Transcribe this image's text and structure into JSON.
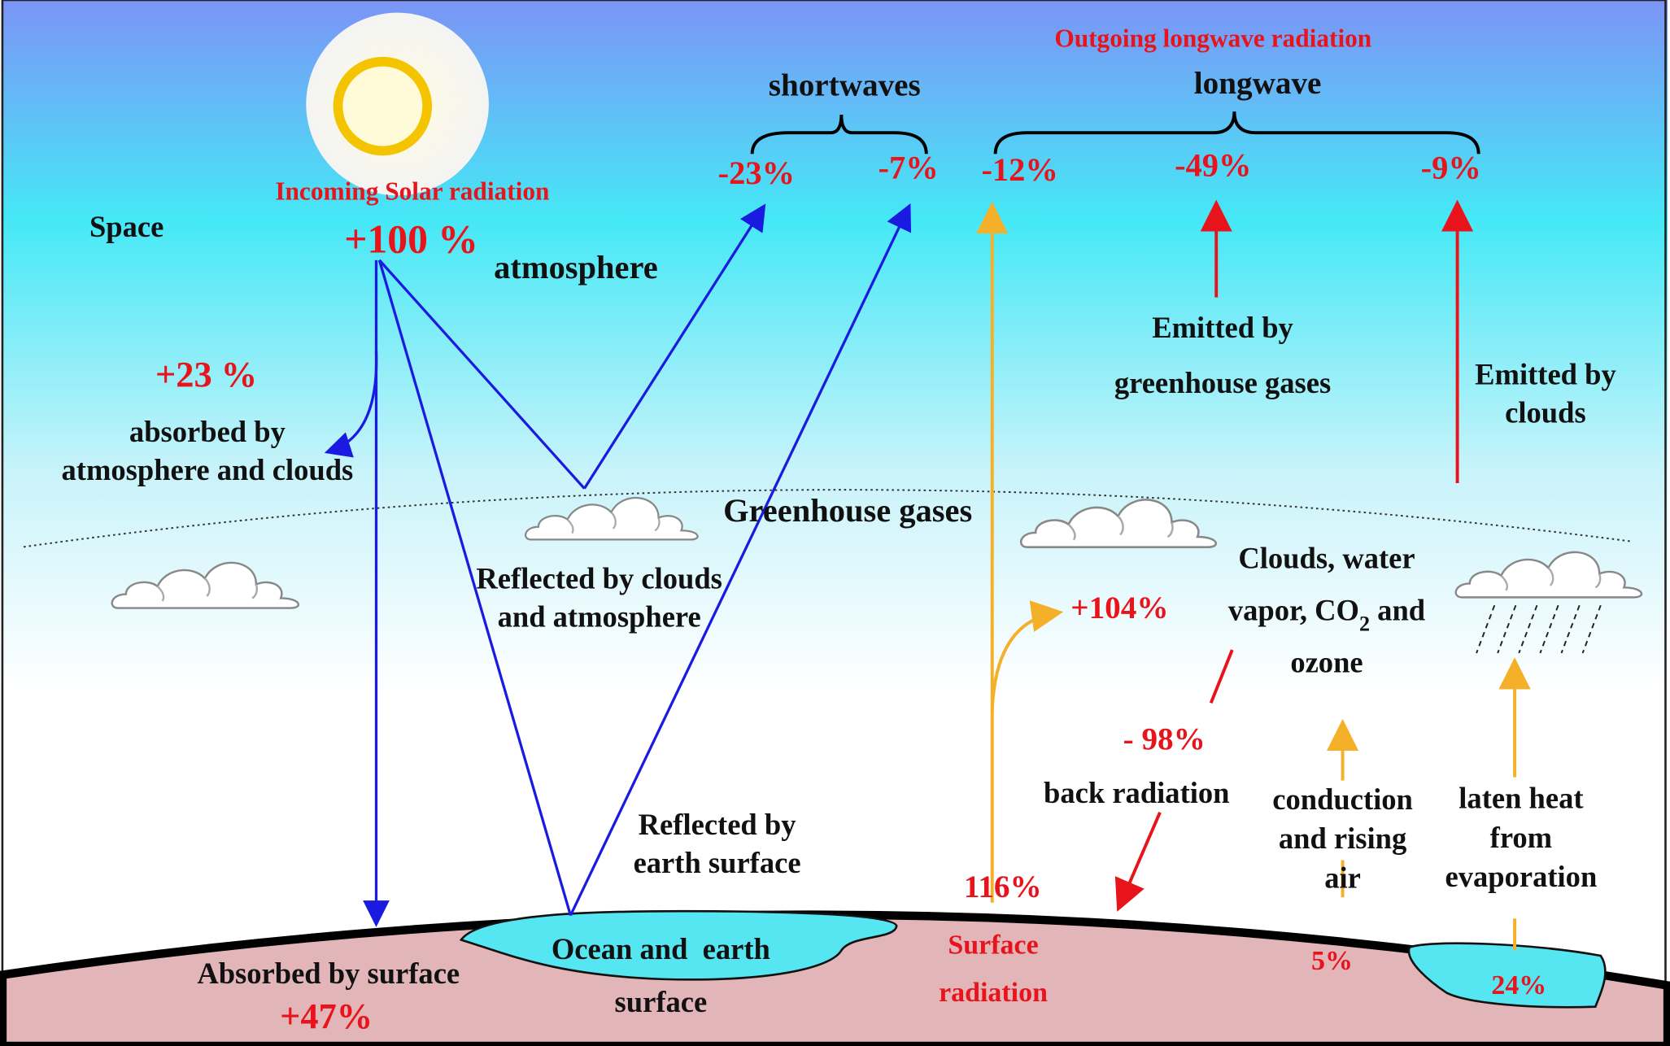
{
  "space": "Space",
  "atmosphere": "atmosphere",
  "greenhouse_gases": "Greenhouse gases",
  "incoming": {
    "label": "Incoming Solar radiation",
    "value": "+100 %"
  },
  "outgoing_title": "Outgoing longwave radiation",
  "shortwaves": {
    "label": "shortwaves",
    "values": [
      "-23%",
      "-7%"
    ]
  },
  "longwave": {
    "label": "longwave",
    "values": [
      "-12%",
      "-49%",
      "-9%"
    ]
  },
  "absorbed_atmosphere": {
    "value": "+23 %",
    "lines": [
      "absorbed by",
      "atmosphere and clouds"
    ]
  },
  "reflected_clouds": [
    "Reflected by clouds",
    "and atmosphere"
  ],
  "reflected_surface": [
    "Reflected by",
    "earth surface"
  ],
  "emitted_ghg": [
    "Emitted by",
    "greenhouse gases"
  ],
  "emitted_clouds": [
    "Emitted by",
    "clouds"
  ],
  "clouds_gases": {
    "line1": "Clouds, water",
    "line2_start": "vapor, CO",
    "line2_sub": "2",
    "line2_end": " and",
    "line3": "ozone"
  },
  "greenhouse_value": "+104%",
  "back_radiation": {
    "value": "- 98%",
    "label": "back radiation"
  },
  "conduction": {
    "lines": [
      "conduction",
      "and rising",
      "air"
    ],
    "value": "5%"
  },
  "latent": {
    "lines": [
      "laten heat",
      "from",
      "evaporation"
    ],
    "value": "24%"
  },
  "surface_radiation": {
    "value": "116%",
    "lines": [
      "Surface",
      "radiation"
    ]
  },
  "ocean": [
    "Ocean and  earth",
    "surface"
  ],
  "absorbed_surface": {
    "label": "Absorbed by surface",
    "value": "+47%"
  }
}
